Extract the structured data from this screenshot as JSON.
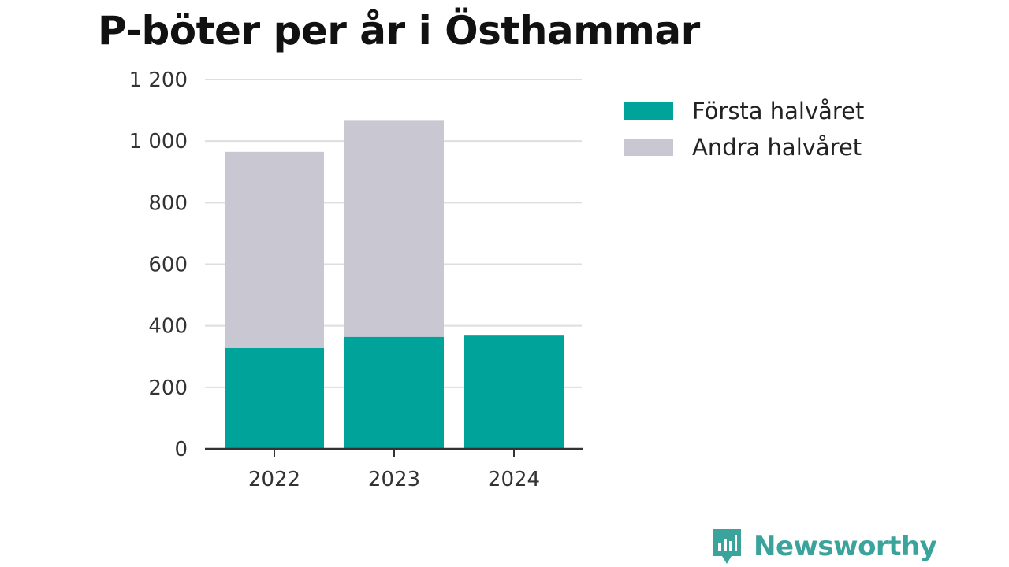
{
  "chart_data": {
    "type": "bar",
    "stacked": true,
    "title": "P-böter per år i Östhammar",
    "xlabel": "",
    "ylabel": "",
    "categories": [
      "2022",
      "2023",
      "2024"
    ],
    "series": [
      {
        "name": "Första halvåret",
        "color": "#00a39a",
        "values": [
          328,
          364,
          368
        ]
      },
      {
        "name": "Andra halvåret",
        "color": "#c8c7d2",
        "values": [
          637,
          702,
          0
        ]
      }
    ],
    "yticks": [
      0,
      200,
      400,
      600,
      800,
      1000,
      1200
    ],
    "ytick_labels": [
      "0",
      "200",
      "400",
      "600",
      "800",
      "1 000",
      "1 200"
    ],
    "ylim": [
      0,
      1200
    ],
    "grid": true,
    "legend_position": "right"
  },
  "branding": {
    "logo_text": "Newsworthy",
    "logo_color": "#3aa39c"
  }
}
